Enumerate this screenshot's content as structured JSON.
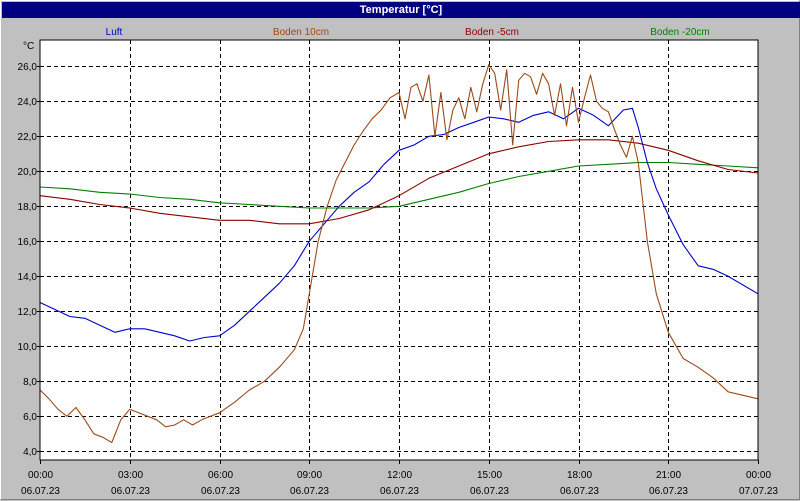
{
  "window": {
    "title": "Temperatur [°C]"
  },
  "colors": {
    "background": "#c0c0c0",
    "title_bar": "#000080",
    "plot_area": "#ffffff",
    "grid": "#000000",
    "luft": "#0000cc",
    "boden_10cm": "#9a4a1c",
    "boden_5cm": "#8b0000",
    "boden_20cm": "#008000"
  },
  "chart_data": {
    "type": "line",
    "title": "Temperatur [°C]",
    "ylabel": "°C",
    "xlabel": "",
    "ylim": [
      3.5,
      27.5
    ],
    "xlim_hours": [
      0,
      24
    ],
    "grid": true,
    "legend_placement": "top",
    "y_ticks": [
      "4,0",
      "6,0",
      "8,0",
      "10,0",
      "12,0",
      "14,0",
      "16,0",
      "18,0",
      "20,0",
      "22,0",
      "24,0",
      "26,0"
    ],
    "x_ticks": [
      {
        "hour": 0,
        "time": "00:00",
        "date": "06.07.23"
      },
      {
        "hour": 3,
        "time": "03:00",
        "date": "06.07.23"
      },
      {
        "hour": 6,
        "time": "06:00",
        "date": "06.07.23"
      },
      {
        "hour": 9,
        "time": "09:00",
        "date": "06.07.23"
      },
      {
        "hour": 12,
        "time": "12:00",
        "date": "06.07.23"
      },
      {
        "hour": 15,
        "time": "15:00",
        "date": "06.07.23"
      },
      {
        "hour": 18,
        "time": "18:00",
        "date": "06.07.23"
      },
      {
        "hour": 21,
        "time": "21:00",
        "date": "06.07.23"
      },
      {
        "hour": 24,
        "time": "00:00",
        "date": "07.07.23"
      }
    ],
    "series": [
      {
        "name": "Luft",
        "color": "#0000cc",
        "x": [
          0,
          0.5,
          1,
          1.5,
          2,
          2.5,
          3,
          3.5,
          4,
          4.5,
          5,
          5.5,
          6,
          6.5,
          7,
          7.5,
          8,
          8.5,
          9,
          9.5,
          10,
          10.5,
          11,
          11.5,
          12,
          12.5,
          13,
          13.5,
          14,
          14.5,
          15,
          15.5,
          16,
          16.5,
          17,
          17.5,
          18,
          18.5,
          19,
          19.5,
          19.8,
          20,
          20.3,
          20.6,
          21,
          21.5,
          22,
          22.5,
          23,
          23.5,
          24
        ],
        "y": [
          12.5,
          12.1,
          11.7,
          11.6,
          11.2,
          10.8,
          11.0,
          11.0,
          10.8,
          10.6,
          10.3,
          10.5,
          10.6,
          11.2,
          12.0,
          12.8,
          13.6,
          14.6,
          16.0,
          17.0,
          18.0,
          18.8,
          19.4,
          20.4,
          21.2,
          21.5,
          22.0,
          22.1,
          22.5,
          22.8,
          23.1,
          23.0,
          22.8,
          23.2,
          23.4,
          23.0,
          23.6,
          23.2,
          22.6,
          23.5,
          23.6,
          22.5,
          20.5,
          19.0,
          17.5,
          15.8,
          14.6,
          14.4,
          14.0,
          13.5,
          13.0
        ]
      },
      {
        "name": "Boden 10cm",
        "color": "#9a4a1c",
        "x": [
          0,
          0.3,
          0.6,
          0.9,
          1.2,
          1.5,
          1.8,
          2.1,
          2.4,
          2.7,
          3.0,
          3.3,
          3.6,
          3.9,
          4.2,
          4.5,
          4.8,
          5.1,
          5.4,
          5.7,
          6.0,
          6.5,
          7,
          7.5,
          8,
          8.5,
          8.8,
          9,
          9.3,
          9.6,
          9.9,
          10.2,
          10.5,
          10.8,
          11.1,
          11.4,
          11.7,
          12.0,
          12.2,
          12.4,
          12.6,
          12.8,
          13.0,
          13.2,
          13.4,
          13.6,
          13.8,
          14.0,
          14.2,
          14.4,
          14.6,
          14.8,
          15.0,
          15.2,
          15.4,
          15.6,
          15.8,
          16.0,
          16.2,
          16.4,
          16.6,
          16.8,
          17.0,
          17.2,
          17.4,
          17.6,
          17.8,
          18.0,
          18.2,
          18.4,
          18.6,
          18.8,
          19.0,
          19.2,
          19.4,
          19.6,
          19.8,
          20.0,
          20.3,
          20.6,
          21,
          21.5,
          22,
          22.5,
          23,
          23.5,
          24
        ],
        "y": [
          7.5,
          7.0,
          6.4,
          6.0,
          6.5,
          5.8,
          5.0,
          4.8,
          4.5,
          5.8,
          6.4,
          6.2,
          6.0,
          5.8,
          5.4,
          5.5,
          5.8,
          5.5,
          5.8,
          6.0,
          6.2,
          6.8,
          7.5,
          8.0,
          8.8,
          9.8,
          11.0,
          13.0,
          16.0,
          18.0,
          19.5,
          20.5,
          21.5,
          22.3,
          23.0,
          23.5,
          24.2,
          24.5,
          23.0,
          24.8,
          25.0,
          24.0,
          25.5,
          22.0,
          24.5,
          21.8,
          23.5,
          24.2,
          23.0,
          24.8,
          23.4,
          25.0,
          26.1,
          25.6,
          23.5,
          25.8,
          21.5,
          25.2,
          25.6,
          25.4,
          24.4,
          25.6,
          25.0,
          23.2,
          25.0,
          22.6,
          24.8,
          22.8,
          24.2,
          25.5,
          24.0,
          23.6,
          23.4,
          22.4,
          21.5,
          20.8,
          22.0,
          20.5,
          16.0,
          13.0,
          10.8,
          9.3,
          8.8,
          8.2,
          7.4,
          7.2,
          7.0
        ]
      },
      {
        "name": "Boden -5cm",
        "color": "#8b0000",
        "x": [
          0,
          1,
          2,
          3,
          4,
          5,
          6,
          7,
          8,
          9,
          10,
          11,
          12,
          13,
          14,
          15,
          16,
          17,
          18,
          19,
          20,
          21,
          22,
          23,
          24
        ],
        "y": [
          18.6,
          18.4,
          18.1,
          17.9,
          17.6,
          17.4,
          17.2,
          17.2,
          17.0,
          17.0,
          17.3,
          17.8,
          18.6,
          19.6,
          20.3,
          21.0,
          21.4,
          21.7,
          21.8,
          21.8,
          21.6,
          21.2,
          20.6,
          20.1,
          19.9
        ]
      },
      {
        "name": "Boden -20cm",
        "color": "#008000",
        "x": [
          0,
          1,
          2,
          3,
          4,
          5,
          6,
          7,
          8,
          9,
          10,
          11,
          12,
          13,
          14,
          15,
          16,
          17,
          18,
          19,
          20,
          21,
          22,
          23,
          24
        ],
        "y": [
          19.1,
          19.0,
          18.8,
          18.7,
          18.5,
          18.4,
          18.2,
          18.1,
          18.0,
          17.9,
          17.9,
          17.9,
          18.0,
          18.4,
          18.8,
          19.3,
          19.7,
          20.0,
          20.3,
          20.4,
          20.5,
          20.5,
          20.4,
          20.3,
          20.2
        ]
      }
    ]
  }
}
